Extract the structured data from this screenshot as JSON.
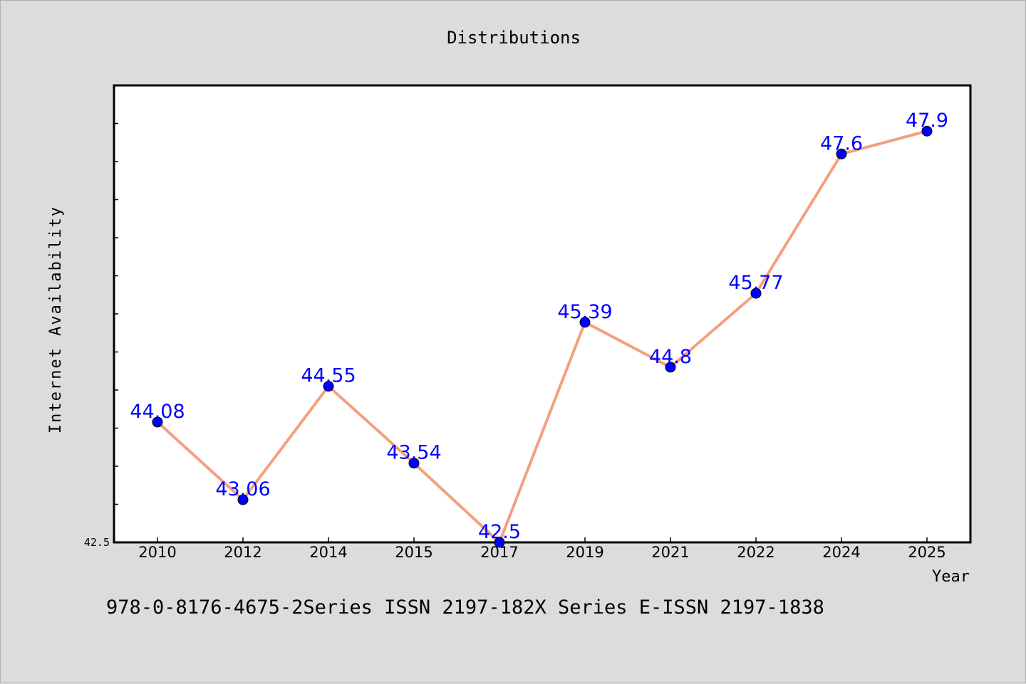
{
  "chart_data": {
    "type": "line",
    "title": "Distributions",
    "xlabel": "Year",
    "ylabel": "Internet Availability",
    "categories": [
      "2010",
      "2012",
      "2014",
      "2015",
      "2017",
      "2019",
      "2021",
      "2022",
      "2024",
      "2025"
    ],
    "values": [
      44.08,
      43.06,
      44.55,
      43.54,
      42.5,
      45.39,
      44.8,
      45.77,
      47.6,
      47.9
    ],
    "data_labels": [
      "44.08",
      "43.06",
      "44.55",
      "43.54",
      "42.5",
      "45.39",
      "44.8",
      "45.77",
      "47.6",
      "47.9"
    ],
    "y_tick_labels": [
      "42.5"
    ],
    "ylim": [
      42.5,
      48.5
    ],
    "grid": false,
    "legend": "none",
    "line_color": "#f4a07e",
    "marker_color": "#0000ff",
    "label_color": "#0000ff",
    "plot_background": "#ffffff",
    "figure_background": "#dcdcdc"
  },
  "footer": {
    "text": "978-0-8176-4675-2Series ISSN 2197-182X Series E-ISSN 2197-1838"
  }
}
